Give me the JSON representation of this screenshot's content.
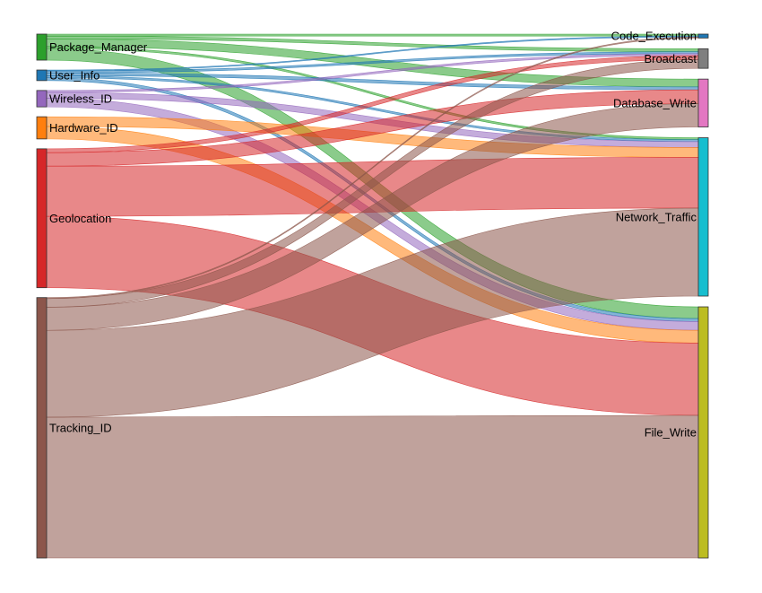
{
  "chart_data": {
    "type": "sankey",
    "sources": [
      {
        "name": "Package_Manager",
        "color": "#2ca02c"
      },
      {
        "name": "User_Info",
        "color": "#1f77b4"
      },
      {
        "name": "Wireless_ID",
        "color": "#9467bd"
      },
      {
        "name": "Hardware_ID",
        "color": "#ff7f0e"
      },
      {
        "name": "Geolocation",
        "color": "#d62728"
      },
      {
        "name": "Tracking_ID",
        "color": "#8c564b"
      }
    ],
    "targets": [
      {
        "name": "Code_Execution",
        "color": "#1f77b4"
      },
      {
        "name": "Broadcast",
        "color": "#7f7f7f"
      },
      {
        "name": "Database_Write",
        "color": "#e377c2"
      },
      {
        "name": "Network_Traffic",
        "color": "#17becf"
      },
      {
        "name": "File_Write",
        "color": "#bcbd22"
      }
    ],
    "links": [
      {
        "source": "Package_Manager",
        "target": "Code_Execution",
        "value": 1
      },
      {
        "source": "Package_Manager",
        "target": "Broadcast",
        "value": 1.5
      },
      {
        "source": "Package_Manager",
        "target": "Database_Write",
        "value": 4
      },
      {
        "source": "Package_Manager",
        "target": "Network_Traffic",
        "value": 1
      },
      {
        "source": "Package_Manager",
        "target": "File_Write",
        "value": 6
      },
      {
        "source": "User_Info",
        "target": "Code_Execution",
        "value": 0.5
      },
      {
        "source": "User_Info",
        "target": "Broadcast",
        "value": 1
      },
      {
        "source": "User_Info",
        "target": "Database_Write",
        "value": 1.5
      },
      {
        "source": "User_Info",
        "target": "Network_Traffic",
        "value": 1
      },
      {
        "source": "User_Info",
        "target": "File_Write",
        "value": 1.5
      },
      {
        "source": "Wireless_ID",
        "target": "Broadcast",
        "value": 1
      },
      {
        "source": "Wireless_ID",
        "target": "Network_Traffic",
        "value": 3
      },
      {
        "source": "Wireless_ID",
        "target": "File_Write",
        "value": 4.5
      },
      {
        "source": "Hardware_ID",
        "target": "Network_Traffic",
        "value": 5
      },
      {
        "source": "Hardware_ID",
        "target": "File_Write",
        "value": 6.5
      },
      {
        "source": "Geolocation",
        "target": "Broadcast",
        "value": 2
      },
      {
        "source": "Geolocation",
        "target": "Database_Write",
        "value": 7
      },
      {
        "source": "Geolocation",
        "target": "Network_Traffic",
        "value": 26
      },
      {
        "source": "Geolocation",
        "target": "File_Write",
        "value": 37
      },
      {
        "source": "Tracking_ID",
        "target": "Code_Execution",
        "value": 0.5
      },
      {
        "source": "Tracking_ID",
        "target": "Broadcast",
        "value": 4.5
      },
      {
        "source": "Tracking_ID",
        "target": "Database_Write",
        "value": 12
      },
      {
        "source": "Tracking_ID",
        "target": "Network_Traffic",
        "value": 45
      },
      {
        "source": "Tracking_ID",
        "target": "File_Write",
        "value": 73
      }
    ]
  }
}
